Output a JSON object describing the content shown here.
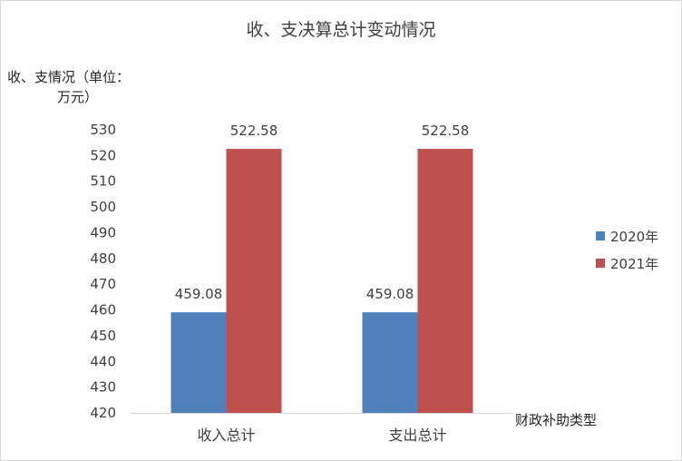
{
  "chart_data": {
    "type": "bar",
    "title": "收、支决算总计变动情况",
    "ylabel": "收、支情况（单位：万元）",
    "ylabel_lines": [
      "收、支情况（单位：",
      "万元）"
    ],
    "xlabel": "财政补助类型",
    "categories": [
      "收入总计",
      "支出总计"
    ],
    "series": [
      {
        "name": "2020年",
        "color": "#4F81BD",
        "values": [
          459.08,
          459.08
        ]
      },
      {
        "name": "2021年",
        "color": "#C0504D",
        "values": [
          522.58,
          522.58
        ]
      }
    ],
    "ylim": [
      420,
      530
    ],
    "yticks": [
      420,
      430,
      440,
      450,
      460,
      470,
      480,
      490,
      500,
      510,
      520,
      530
    ],
    "data_labels": [
      "459.08",
      "522.58",
      "459.08",
      "522.58"
    ],
    "grid": false,
    "legend_position": "right"
  }
}
